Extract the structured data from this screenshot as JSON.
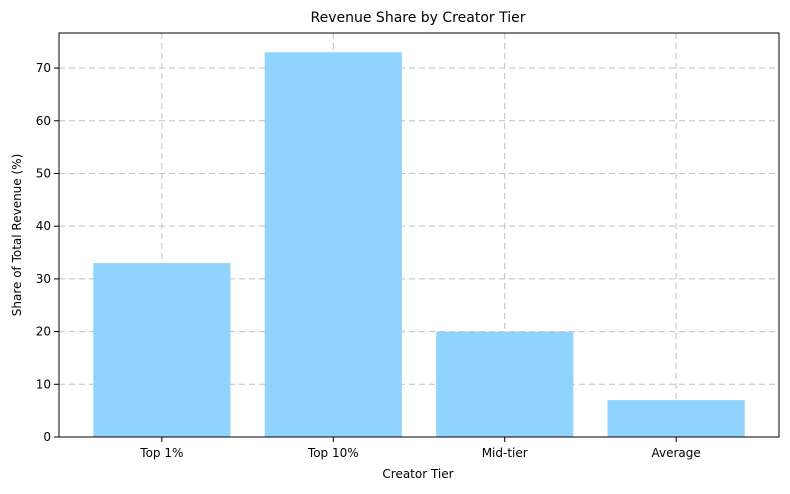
{
  "chart_data": {
    "type": "bar",
    "title": "Revenue Share by Creator Tier",
    "xlabel": "Creator Tier",
    "ylabel": "Share of Total Revenue (%)",
    "categories": [
      "Top 1%",
      "Top 10%",
      "Mid-tier",
      "Average"
    ],
    "values": [
      33,
      73,
      20,
      7
    ],
    "ylim": [
      0,
      76.65
    ],
    "yticks": [
      0,
      10,
      20,
      30,
      40,
      50,
      60,
      70
    ],
    "grid": true,
    "legend": "none",
    "colors": {
      "bar": "#90d4fe",
      "grid": "#c0c0c0",
      "axis": "#000000"
    }
  }
}
